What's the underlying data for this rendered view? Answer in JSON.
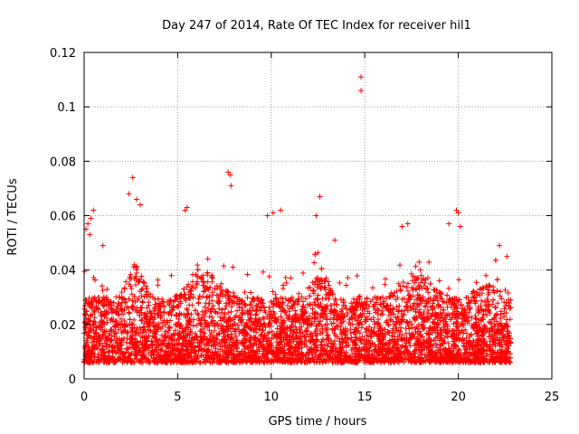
{
  "chart_data": {
    "type": "scatter",
    "title": "Day 247 of 2014, Rate Of TEC Index for receiver hil1",
    "xlabel": "GPS time / hours",
    "ylabel": "ROTI / TECUs",
    "xlim": [
      0,
      25
    ],
    "ylim": [
      0,
      0.12
    ],
    "xticks": [
      0,
      5,
      10,
      15,
      20,
      25
    ],
    "yticks": [
      0,
      0.02,
      0.04,
      0.06,
      0.08,
      0.1,
      0.12
    ],
    "xtick_labels": [
      "0",
      "5",
      "10",
      "15",
      "20",
      "25"
    ],
    "ytick_labels": [
      "0",
      "0.02",
      "0.04",
      "0.06",
      "0.08",
      "0.1",
      "0.12"
    ],
    "grid": true,
    "marker": "+",
    "color": "#ff0000",
    "data_extent_hours": [
      0,
      22.8
    ],
    "series": [
      {
        "name": "ROTI",
        "points": [
          [
            0.1,
            0.055
          ],
          [
            0.2,
            0.057
          ],
          [
            0.3,
            0.053
          ],
          [
            0.35,
            0.059
          ],
          [
            0.5,
            0.062
          ],
          [
            1.0,
            0.049
          ],
          [
            2.4,
            0.068
          ],
          [
            2.6,
            0.074
          ],
          [
            2.8,
            0.066
          ],
          [
            3.0,
            0.064
          ],
          [
            5.4,
            0.062
          ],
          [
            5.5,
            0.063
          ],
          [
            7.7,
            0.076
          ],
          [
            7.8,
            0.075
          ],
          [
            7.85,
            0.071
          ],
          [
            9.8,
            0.06
          ],
          [
            10.1,
            0.061
          ],
          [
            10.5,
            0.062
          ],
          [
            12.4,
            0.06
          ],
          [
            12.6,
            0.067
          ],
          [
            13.4,
            0.051
          ],
          [
            14.8,
            0.111
          ],
          [
            14.8,
            0.106
          ],
          [
            17.0,
            0.056
          ],
          [
            17.3,
            0.057
          ],
          [
            19.5,
            0.057
          ],
          [
            19.9,
            0.062
          ],
          [
            20.0,
            0.061
          ],
          [
            20.1,
            0.056
          ],
          [
            22.2,
            0.049
          ],
          [
            22.6,
            0.045
          ],
          [
            22.8,
            0.029
          ]
        ]
      }
    ]
  }
}
